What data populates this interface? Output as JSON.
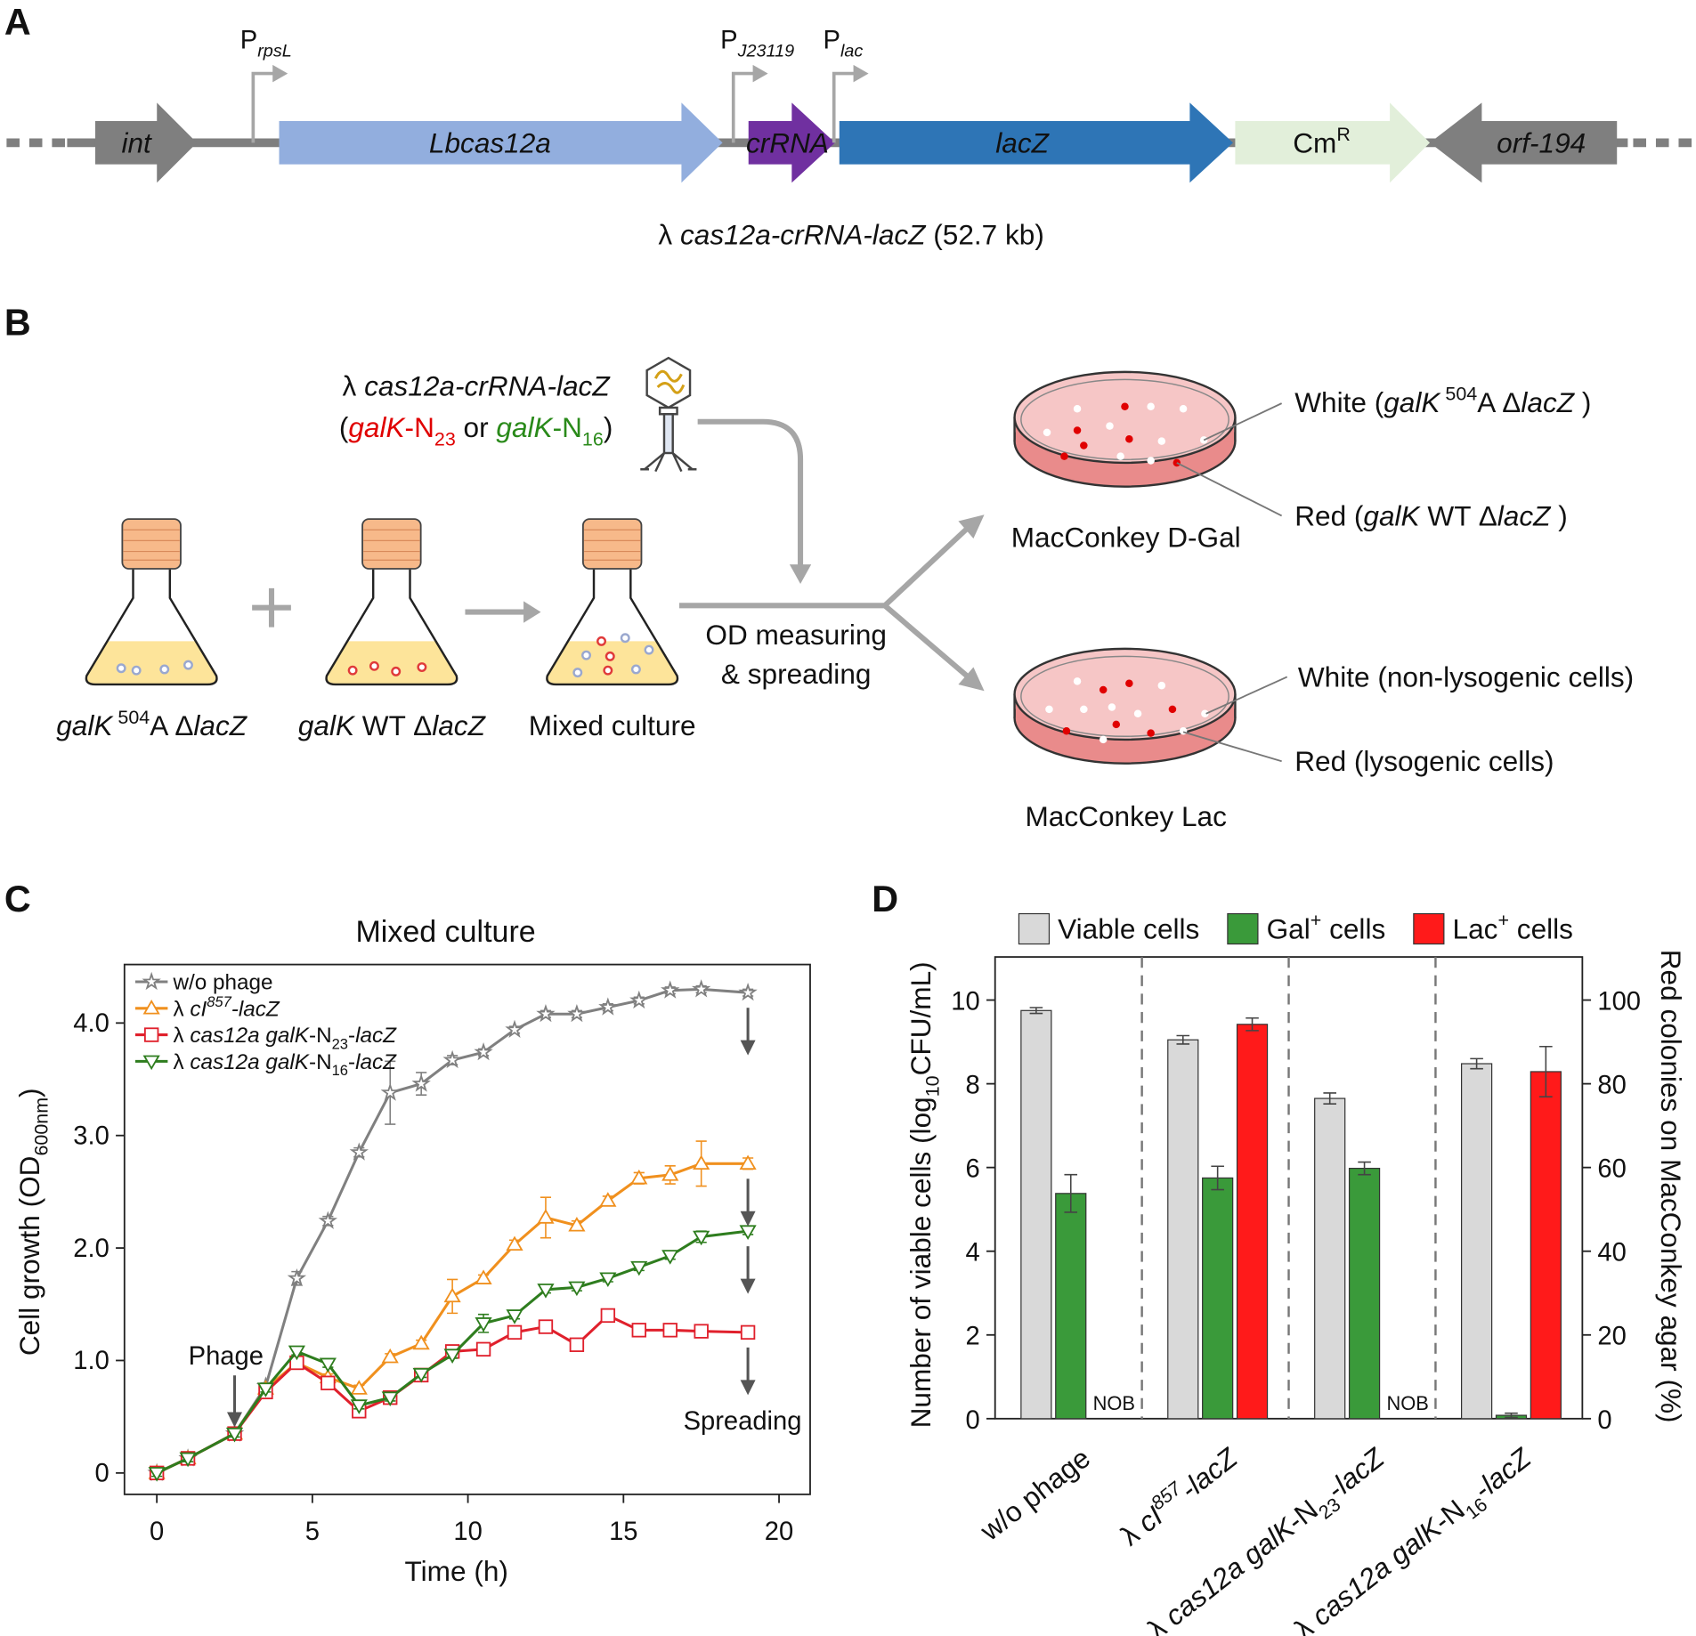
{
  "panel_labels": [
    "A",
    "B",
    "C",
    "D"
  ],
  "gene_map": {
    "genes": [
      {
        "label": [
          {
            "text": "int",
            "style": "i"
          }
        ]
      },
      {
        "label": [
          {
            "text": "Lbcas12a",
            "style": "i"
          }
        ]
      },
      {
        "label": [
          {
            "text": "crRNA",
            "style": "i"
          }
        ]
      },
      {
        "label": [
          {
            "text": "lacZ",
            "style": "i"
          }
        ]
      },
      {
        "label": [
          {
            "text": "Cm"
          },
          {
            "text": "R",
            "style": "sup"
          }
        ]
      },
      {
        "label": [
          {
            "text": "orf-194",
            "style": "i"
          }
        ]
      }
    ],
    "promoters": [
      [
        {
          "text": "P"
        },
        {
          "text": "rpsL",
          "style": "isub"
        }
      ],
      [
        {
          "text": "P"
        },
        {
          "text": "J23119",
          "style": "isub"
        }
      ],
      [
        {
          "text": "P"
        },
        {
          "text": "lac",
          "style": "isub"
        }
      ]
    ],
    "caption": [
      {
        "text": "λ "
      },
      {
        "text": "cas12a-crRNA-lacZ",
        "style": "i"
      },
      {
        "text": " (52.7 kb)"
      }
    ]
  },
  "workflow": {
    "phage_label": [
      {
        "text": "λ "
      },
      {
        "text": "cas12a-crRNA-lacZ",
        "style": "i"
      }
    ],
    "phage_guides": [
      {
        "text": "("
      },
      {
        "text": "galK",
        "style": "i",
        "color": "#e00000"
      },
      {
        "text": "-N",
        "color": "#e00000"
      },
      {
        "text": "23",
        "style": "sub",
        "color": "#e00000"
      },
      {
        "text": " or "
      },
      {
        "text": "galK",
        "style": "i",
        "color": "#2a8a1a"
      },
      {
        "text": "-N",
        "color": "#2a8a1a"
      },
      {
        "text": "16",
        "style": "sub",
        "color": "#2a8a1a"
      },
      {
        "text": ")"
      }
    ],
    "flasks": [
      [
        {
          "text": "galK",
          "style": "i"
        },
        {
          "text": " 504",
          "style": "sup"
        },
        {
          "text": "A Δ"
        },
        {
          "text": "lacZ",
          "style": "i"
        }
      ],
      [
        {
          "text": "galK",
          "style": "i"
        },
        {
          "text": " WT Δ"
        },
        {
          "text": "lacZ",
          "style": "i"
        }
      ],
      "Mixed culture"
    ],
    "process": [
      "OD measuring",
      "& spreading"
    ],
    "plates": [
      {
        "name": "MacConkey D-Gal",
        "labels": [
          [
            {
              "text": "White ("
            },
            {
              "text": "galK",
              "style": "i"
            },
            {
              "text": " 504",
              "style": "sup"
            },
            {
              "text": "A Δ"
            },
            {
              "text": "lacZ",
              "style": "i"
            },
            {
              "text": " )"
            }
          ],
          [
            {
              "text": "Red ("
            },
            {
              "text": "galK",
              "style": "i"
            },
            {
              "text": " WT Δ"
            },
            {
              "text": "lacZ",
              "style": "i"
            },
            {
              "text": " )"
            }
          ]
        ]
      },
      {
        "name": "MacConkey Lac",
        "labels": [
          "White (non-lysogenic cells)",
          "Red (lysogenic cells)"
        ]
      }
    ]
  },
  "chart_data": [
    {
      "type": "line",
      "title": "Mixed culture",
      "x_label": "Time (h)",
      "y_label": [
        {
          "text": "Cell growth (OD"
        },
        {
          "text": "600nm",
          "style": "sub"
        },
        {
          "text": ")"
        }
      ],
      "x": [
        0,
        1,
        2.5,
        3.5,
        4.5,
        5.5,
        6.5,
        7.5,
        8.5,
        9.5,
        10.5,
        11.5,
        12.5,
        13.5,
        14.5,
        15.5,
        16.5,
        17.5,
        19
      ],
      "series": [
        {
          "name": "w/o phage",
          "color": "#808080",
          "marker": "star",
          "values": [
            0,
            0.13,
            0.35,
            0.77,
            1.73,
            2.24,
            2.85,
            3.38,
            3.46,
            3.67,
            3.74,
            3.94,
            4.08,
            4.08,
            4.14,
            4.2,
            4.29,
            4.3,
            4.27
          ],
          "errors": [
            0.03,
            0.03,
            0.03,
            0.03,
            0.06,
            0.04,
            0.04,
            0.28,
            0.1,
            0.04,
            0.03,
            0.03,
            0.03,
            0.03,
            0.03,
            0.03,
            0.03,
            0.03,
            0.03
          ]
        },
        {
          "name": [
            {
              "text": "λ "
            },
            {
              "text": "cI",
              "style": "i"
            },
            {
              "text": "857",
              "style": "isup"
            },
            {
              "text": "-lacZ",
              "style": "i"
            }
          ],
          "color": "#f0901e",
          "marker": "triangle-up",
          "values": [
            0,
            0.13,
            0.35,
            0.75,
            0.98,
            0.85,
            0.75,
            1.03,
            1.15,
            1.57,
            1.73,
            2.03,
            2.27,
            2.2,
            2.42,
            2.62,
            2.65,
            2.75,
            2.75
          ],
          "errors": [
            0.03,
            0.03,
            0.03,
            0.03,
            0.04,
            0.03,
            0.03,
            0.03,
            0.03,
            0.15,
            0.03,
            0.04,
            0.18,
            0.04,
            0.04,
            0.05,
            0.08,
            0.2,
            0.05
          ]
        },
        {
          "name": [
            {
              "text": "λ "
            },
            {
              "text": "cas12a galK",
              "style": "i"
            },
            {
              "text": "-N"
            },
            {
              "text": "23",
              "style": "sub"
            },
            {
              "text": "-"
            },
            {
              "text": "lacZ",
              "style": "i"
            }
          ],
          "color": "#e0202c",
          "marker": "square",
          "values": [
            0,
            0.13,
            0.35,
            0.72,
            0.98,
            0.8,
            0.55,
            0.67,
            0.87,
            1.08,
            1.1,
            1.25,
            1.3,
            1.14,
            1.4,
            1.27,
            1.27,
            1.26,
            1.25
          ],
          "errors": [
            0.04,
            0.04,
            0.04,
            0.04,
            0.04,
            0.04,
            0.04,
            0.04,
            0.04,
            0.04,
            0.04,
            0.04,
            0.04,
            0.04,
            0.04,
            0.04,
            0.04,
            0.04,
            0.04
          ]
        },
        {
          "name": [
            {
              "text": "λ "
            },
            {
              "text": "cas12a galK",
              "style": "i"
            },
            {
              "text": "-N"
            },
            {
              "text": "16",
              "style": "sub"
            },
            {
              "text": "-"
            },
            {
              "text": "lacZ",
              "style": "i"
            }
          ],
          "color": "#2e7d1e",
          "marker": "triangle-down",
          "values": [
            0,
            0.13,
            0.35,
            0.75,
            1.08,
            0.97,
            0.6,
            0.67,
            0.88,
            1.05,
            1.33,
            1.4,
            1.63,
            1.65,
            1.73,
            1.83,
            1.93,
            2.1,
            2.15
          ],
          "errors": [
            0.03,
            0.03,
            0.03,
            0.03,
            0.03,
            0.03,
            0.03,
            0.03,
            0.03,
            0.03,
            0.08,
            0.03,
            0.03,
            0.03,
            0.03,
            0.03,
            0.03,
            0.05,
            0.03
          ]
        }
      ],
      "xlim": [
        -1.04,
        21.0
      ],
      "ylim": [
        -0.19,
        4.52
      ],
      "xticks": [
        0,
        5,
        10,
        15,
        20
      ],
      "yticks": [
        0,
        {
          "value": 1,
          "label": "1.0"
        },
        {
          "value": 2,
          "label": "2.0"
        },
        {
          "value": 3,
          "label": "3.0"
        },
        {
          "value": 4,
          "label": "4.0"
        }
      ],
      "legend": "upper left",
      "annotations": [
        {
          "text": "Phage",
          "x": 2.5
        },
        {
          "text": "Spreading",
          "x": 19
        }
      ]
    },
    {
      "type": "bar",
      "y_label": [
        {
          "text": "Number of viable cells (log"
        },
        {
          "text": "10",
          "style": "sub"
        },
        {
          "text": "CFU/mL)"
        }
      ],
      "y2_label": "Red colonies on MacConkey agar (%)",
      "categories": [
        "w/o phage",
        [
          {
            "text": "λ "
          },
          {
            "text": "cI",
            "style": "i"
          },
          {
            "text": "857",
            "style": "isup"
          },
          {
            "text": "-lacZ",
            "style": "i"
          }
        ],
        [
          {
            "text": "λ "
          },
          {
            "text": "cas12a galK",
            "style": "i"
          },
          {
            "text": "-N"
          },
          {
            "text": "23",
            "style": "sub"
          },
          {
            "text": "-"
          },
          {
            "text": "lacZ",
            "style": "i"
          }
        ],
        [
          {
            "text": "λ "
          },
          {
            "text": "cas12a galK",
            "style": "i"
          },
          {
            "text": "-N"
          },
          {
            "text": "16",
            "style": "sub"
          },
          {
            "text": "-"
          },
          {
            "text": "lacZ",
            "style": "i"
          }
        ]
      ],
      "series": [
        {
          "name": "Viable cells",
          "color": "#d9d9d9",
          "values": [
            9.75,
            9.05,
            7.65,
            8.48
          ],
          "errors": [
            0.07,
            0.1,
            0.13,
            0.12
          ]
        },
        {
          "name": [
            {
              "text": "Gal"
            },
            {
              "text": "+",
              "style": "sup"
            },
            {
              "text": " cells"
            }
          ],
          "color": "#3a9a3a",
          "values": [
            5.38,
            5.75,
            5.98,
            0.08
          ],
          "errors": [
            0.45,
            0.28,
            0.15,
            0.05
          ]
        },
        {
          "name": [
            {
              "text": "Lac"
            },
            {
              "text": "+",
              "style": "sup"
            },
            {
              "text": " cells"
            }
          ],
          "color": "#ff1a1a",
          "axis": "y2",
          "values": [
            null,
            94.2,
            null,
            82.9
          ],
          "errors": [
            null,
            1.5,
            null,
            6
          ],
          "value_labels": [
            "NOB",
            null,
            "NOB",
            null
          ]
        }
      ],
      "ylim": [
        0,
        11.03
      ],
      "yticks": [
        0,
        2,
        4,
        6,
        8,
        10
      ],
      "y2lim": [
        0,
        110.3
      ],
      "y2ticks": [
        0,
        20,
        40,
        60,
        80,
        100
      ],
      "legend": "top"
    }
  ]
}
